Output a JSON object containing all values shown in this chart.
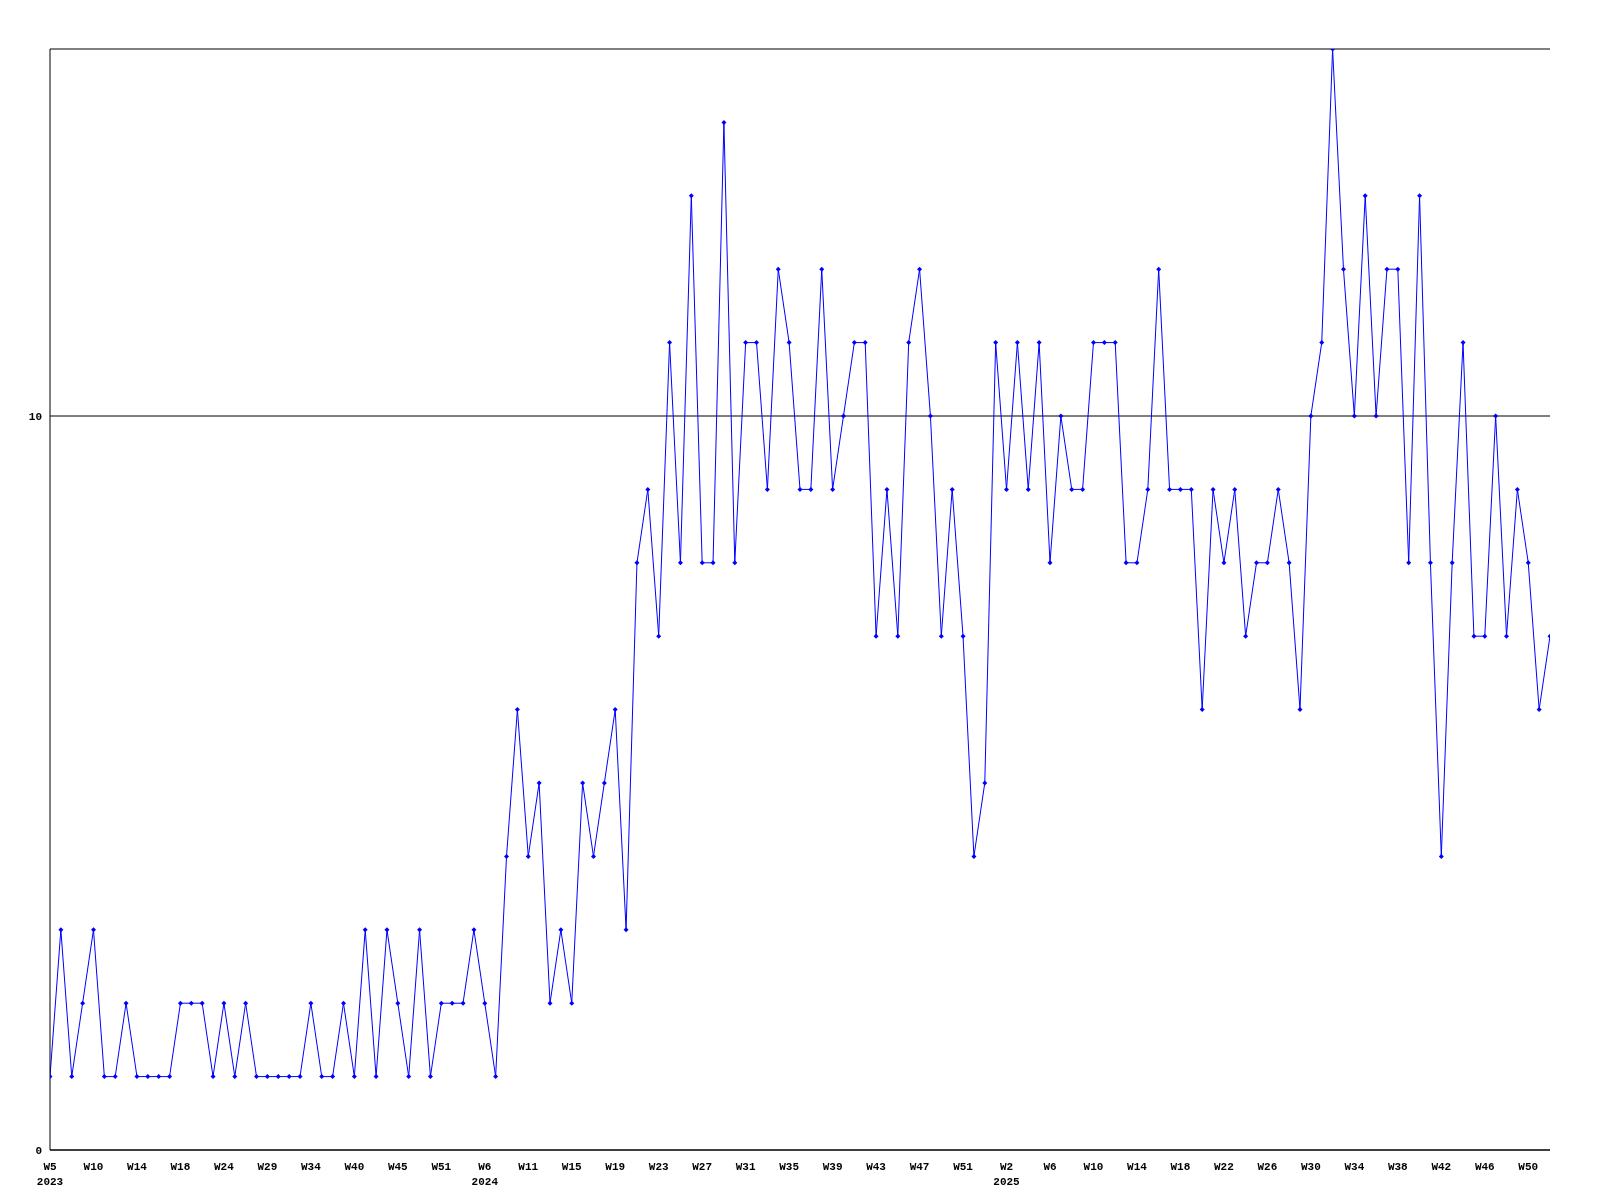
{
  "chart_data": {
    "type": "line",
    "categories": [
      "W5\n2023",
      null,
      null,
      null,
      "W10",
      null,
      null,
      null,
      "W14",
      null,
      null,
      null,
      "W18",
      null,
      null,
      null,
      "W24",
      null,
      null,
      null,
      "W29",
      null,
      null,
      null,
      "W34",
      null,
      null,
      null,
      "W40",
      null,
      null,
      null,
      "W45",
      null,
      null,
      null,
      "W51",
      null,
      null,
      null,
      "W6\n2024",
      null,
      null,
      null,
      "W11",
      null,
      null,
      null,
      "W15",
      null,
      null,
      null,
      "W19",
      null,
      null,
      null,
      "W23",
      null,
      null,
      null,
      "W27",
      null,
      null,
      null,
      "W31",
      null,
      null,
      null,
      "W35",
      null,
      null,
      null,
      "W39",
      null,
      null,
      null,
      "W43",
      null,
      null,
      null,
      "W47",
      null,
      null,
      null,
      "W51",
      null,
      null,
      null,
      "W2\n2025",
      null,
      null,
      null,
      "W6",
      null,
      null,
      null,
      "W10",
      null,
      null,
      null,
      "W14",
      null,
      null,
      null,
      "W18",
      null,
      null,
      null,
      "W22",
      null,
      null,
      null,
      "W26",
      null,
      null,
      null,
      "W30",
      null,
      null,
      null,
      "W34",
      null,
      null,
      null,
      "W38",
      null,
      null,
      null,
      "W42",
      null,
      null,
      null,
      "W46",
      null,
      null,
      null,
      "W50",
      null,
      null
    ],
    "series": [
      {
        "color": "#0000ff",
        "values": [
          1,
          3,
          1,
          2,
          3,
          1,
          1,
          2,
          1,
          1,
          1,
          1,
          2,
          2,
          2,
          1,
          2,
          1,
          2,
          1,
          1,
          1,
          1,
          1,
          2,
          1,
          1,
          2,
          1,
          3,
          1,
          3,
          2,
          1,
          3,
          1,
          2,
          2,
          2,
          3,
          2,
          1,
          4,
          6,
          4,
          5,
          2,
          3,
          2,
          5,
          4,
          5,
          6,
          3,
          8,
          9,
          7,
          11,
          8,
          13,
          8,
          8,
          14,
          8,
          11,
          11,
          9,
          12,
          11,
          9,
          9,
          12,
          9,
          10,
          11,
          11,
          7,
          9,
          7,
          11,
          12,
          10,
          7,
          9,
          7,
          4,
          5,
          11,
          9,
          11,
          9,
          11,
          8,
          10,
          9,
          9,
          11,
          11,
          11,
          8,
          8,
          9,
          12,
          9,
          9,
          9,
          6,
          9,
          8,
          9,
          7,
          8,
          8,
          9,
          8,
          6,
          10,
          11,
          15,
          12,
          10,
          13,
          10,
          12,
          12,
          8,
          13,
          8,
          4,
          8,
          11,
          7,
          7,
          10,
          7,
          9,
          8,
          6,
          7
        ]
      }
    ],
    "ylim": [
      0,
      15
    ],
    "yticks": [
      0,
      10
    ],
    "grid": "y",
    "marker": "diamond",
    "line_style": "solid"
  }
}
